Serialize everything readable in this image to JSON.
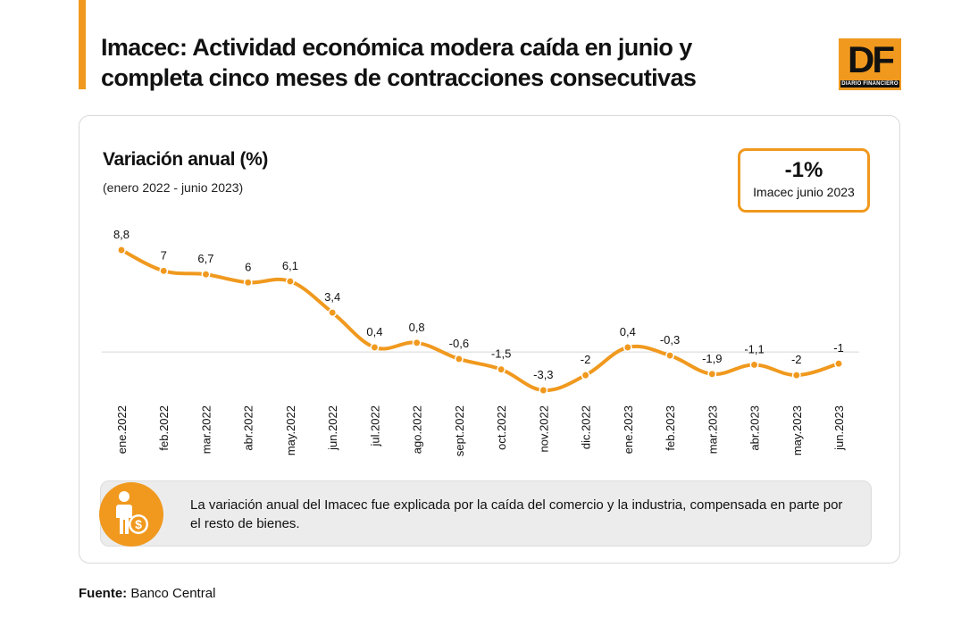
{
  "header": {
    "headline": "Imacec: Actividad económica modera caída en junio y completa cinco meses de contracciones consecutivas",
    "logo_text": "DF",
    "logo_subtext": "DIARIO FINANCIERO"
  },
  "kpi": {
    "value": "-1%",
    "label": "Imacec junio 2023"
  },
  "note": {
    "text": "La variación anual del Imacec fue explicada por la caída del comercio y la industria, compensada en parte por el resto de bienes."
  },
  "source": {
    "label": "Fuente:",
    "value": "Banco Central"
  },
  "colors": {
    "accent": "#F0991E",
    "text": "#111111",
    "baseline": "#d6d6d6"
  },
  "chart_data": {
    "type": "line",
    "title": "Variación anual (%)",
    "subtitle": "(enero 2022 - junio 2023)",
    "categories": [
      "ene.2022",
      "feb.2022",
      "mar.2022",
      "abr.2022",
      "may.2022",
      "jun.2022",
      "jul.2022",
      "ago.2022",
      "sept.2022",
      "oct.2022",
      "nov.2022",
      "dic.2022",
      "ene.2023",
      "feb.2023",
      "mar.2023",
      "abr.2023",
      "may.2023",
      "jun.2023"
    ],
    "values": [
      8.8,
      7,
      6.7,
      6,
      6.1,
      3.4,
      0.4,
      0.8,
      -0.6,
      -1.5,
      -3.3,
      -2,
      0.4,
      -0.3,
      -1.9,
      -1.1,
      -2,
      -1
    ],
    "value_labels": [
      "8,8",
      "7",
      "6,7",
      "6",
      "6,1",
      "3,4",
      "0,4",
      "0,8",
      "-0,6",
      "-1,5",
      "-3,3",
      "-2",
      "0,4",
      "-0,3",
      "-1,9",
      "-1,1",
      "-2",
      "-1"
    ],
    "ylim": [
      -3.3,
      8.8
    ],
    "zero_line": true,
    "grid": false,
    "xlabel": "",
    "ylabel": ""
  }
}
